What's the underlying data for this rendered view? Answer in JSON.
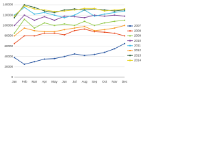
{
  "chart_data": {
    "type": "line",
    "categories": [
      "Jan",
      "Feb",
      "Mar",
      "Apr",
      "May",
      "Jun",
      "Jul",
      "Aug",
      "Sep",
      "Oct",
      "Nov",
      "Dec"
    ],
    "ylim": [
      0,
      140000
    ],
    "yticks": [
      0,
      20000,
      40000,
      60000,
      80000,
      100000,
      120000,
      140000
    ],
    "grid": true,
    "legend": "right",
    "series": [
      {
        "name": "2007",
        "color": "#1f4e9c",
        "values": [
          38000,
          25000,
          30000,
          35000,
          36000,
          40000,
          45000,
          42000,
          44000,
          48000,
          55000,
          65000
        ]
      },
      {
        "name": "2008",
        "color": "#e8471c",
        "values": [
          65000,
          80000,
          80000,
          85000,
          85000,
          82000,
          90000,
          93000,
          88000,
          87000,
          85000,
          80000
        ]
      },
      {
        "name": "2009",
        "color": "#8cc63f",
        "values": [
          85000,
          112000,
          95000,
          105000,
          100000,
          103000,
          100000,
          108000,
          100000,
          105000,
          108000,
          110000
        ]
      },
      {
        "name": "2010",
        "color": "#7b3f98",
        "values": [
          100000,
          120000,
          110000,
          117000,
          110000,
          118000,
          117000,
          115000,
          120000,
          118000,
          120000,
          118000
        ]
      },
      {
        "name": "2011",
        "color": "#35b6e0",
        "values": [
          120000,
          135000,
          122000,
          125000,
          120000,
          115000,
          120000,
          130000,
          118000,
          122000,
          125000,
          128000
        ]
      },
      {
        "name": "2012",
        "color": "#f7941d",
        "values": [
          80000,
          95000,
          90000,
          88000,
          88000,
          92000,
          95000,
          98000,
          90000,
          92000,
          95000,
          100000
        ]
      },
      {
        "name": "2013",
        "color": "#2b5e3a",
        "values": [
          115000,
          140000,
          135000,
          128000,
          125000,
          130000,
          132000,
          130000,
          132000,
          130000,
          128000,
          130000
        ]
      },
      {
        "name": "2014",
        "color": "#e5d21c",
        "values": [
          118000,
          138000,
          132000,
          130000,
          127000,
          128000,
          130000,
          133000,
          133000,
          128000,
          130000,
          132000
        ]
      }
    ]
  }
}
